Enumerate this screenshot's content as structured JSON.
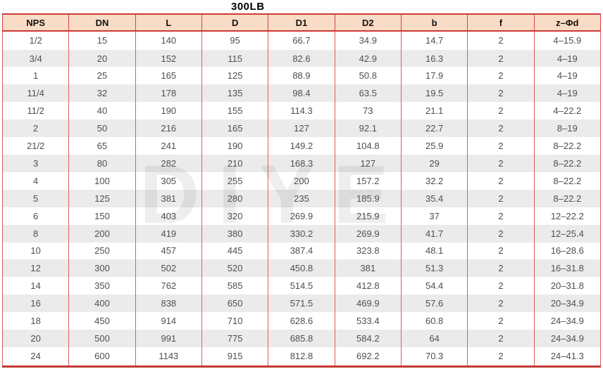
{
  "title": "300LB",
  "watermark": "DIYE",
  "colors": {
    "border_red": "#d5423e",
    "border_red_thick": "#cd3a37",
    "header_bg": "#f9dcc5",
    "stripe_gray": "#ebebeb",
    "cell_text": "#4f4f4f",
    "header_text": "#111111"
  },
  "table": {
    "columns": [
      "NPS",
      "DN",
      "L",
      "D",
      "D1",
      "D2",
      "b",
      "f",
      "z–Φd"
    ],
    "rows": [
      [
        "1/2",
        "15",
        "140",
        "95",
        "66.7",
        "34.9",
        "14.7",
        "2",
        "4–15.9"
      ],
      [
        "3/4",
        "20",
        "152",
        "115",
        "82.6",
        "42.9",
        "16.3",
        "2",
        "4–19"
      ],
      [
        "1",
        "25",
        "165",
        "125",
        "88.9",
        "50.8",
        "17.9",
        "2",
        "4–19"
      ],
      [
        "11/4",
        "32",
        "178",
        "135",
        "98.4",
        "63.5",
        "19.5",
        "2",
        "4–19"
      ],
      [
        "11/2",
        "40",
        "190",
        "155",
        "114.3",
        "73",
        "21.1",
        "2",
        "4–22.2"
      ],
      [
        "2",
        "50",
        "216",
        "165",
        "127",
        "92.1",
        "22.7",
        "2",
        "8–19"
      ],
      [
        "21/2",
        "65",
        "241",
        "190",
        "149.2",
        "104.8",
        "25.9",
        "2",
        "8–22.2"
      ],
      [
        "3",
        "80",
        "282",
        "210",
        "168.3",
        "127",
        "29",
        "2",
        "8–22.2"
      ],
      [
        "4",
        "100",
        "305",
        "255",
        "200",
        "157.2",
        "32.2",
        "2",
        "8–22.2"
      ],
      [
        "5",
        "125",
        "381",
        "280",
        "235",
        "185.9",
        "35.4",
        "2",
        "8–22.2"
      ],
      [
        "6",
        "150",
        "403",
        "320",
        "269.9",
        "215.9",
        "37",
        "2",
        "12–22.2"
      ],
      [
        "8",
        "200",
        "419",
        "380",
        "330.2",
        "269.9",
        "41.7",
        "2",
        "12–25.4"
      ],
      [
        "10",
        "250",
        "457",
        "445",
        "387.4",
        "323.8",
        "48.1",
        "2",
        "16–28.6"
      ],
      [
        "12",
        "300",
        "502",
        "520",
        "450.8",
        "381",
        "51.3",
        "2",
        "16–31.8"
      ],
      [
        "14",
        "350",
        "762",
        "585",
        "514.5",
        "412.8",
        "54.4",
        "2",
        "20–31.8"
      ],
      [
        "16",
        "400",
        "838",
        "650",
        "571.5",
        "469.9",
        "57.6",
        "2",
        "20–34.9"
      ],
      [
        "18",
        "450",
        "914",
        "710",
        "628.6",
        "533.4",
        "60.8",
        "2",
        "24–34.9"
      ],
      [
        "20",
        "500",
        "991",
        "775",
        "685.8",
        "584.2",
        "64",
        "2",
        "24–34.9"
      ],
      [
        "24",
        "600",
        "1143",
        "915",
        "812.8",
        "692.2",
        "70.3",
        "2",
        "24–41.3"
      ]
    ]
  }
}
